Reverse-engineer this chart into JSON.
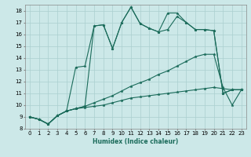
{
  "xlabel": "Humidex (Indice chaleur)",
  "xlim": [
    -0.5,
    23.5
  ],
  "ylim": [
    8,
    18.5
  ],
  "xticks": [
    0,
    1,
    2,
    3,
    4,
    5,
    6,
    7,
    8,
    9,
    10,
    11,
    12,
    13,
    14,
    15,
    16,
    17,
    18,
    19,
    20,
    21,
    22,
    23
  ],
  "yticks": [
    8,
    9,
    10,
    11,
    12,
    13,
    14,
    15,
    16,
    17,
    18
  ],
  "bg_color": "#cce8e8",
  "grid_color": "#aacfcf",
  "line_color": "#1a6b5a",
  "lines": [
    {
      "x": [
        0,
        1,
        2,
        3,
        4,
        5,
        6,
        7,
        8,
        9,
        10,
        11,
        12,
        13,
        14,
        15,
        16,
        17,
        18,
        19,
        20,
        21,
        22,
        23
      ],
      "y": [
        9.0,
        8.8,
        8.4,
        9.1,
        9.5,
        9.7,
        9.8,
        9.9,
        10.0,
        10.2,
        10.4,
        10.6,
        10.7,
        10.8,
        10.9,
        11.0,
        11.1,
        11.2,
        11.3,
        11.4,
        11.5,
        11.4,
        11.3,
        11.3
      ]
    },
    {
      "x": [
        0,
        1,
        2,
        3,
        4,
        5,
        6,
        7,
        8,
        9,
        10,
        11,
        12,
        13,
        14,
        15,
        16,
        17,
        18,
        19,
        20,
        21,
        22,
        23
      ],
      "y": [
        9.0,
        8.8,
        8.4,
        9.1,
        9.5,
        9.7,
        9.9,
        10.2,
        10.5,
        10.8,
        11.2,
        11.6,
        11.9,
        12.2,
        12.6,
        12.9,
        13.3,
        13.7,
        14.1,
        14.3,
        14.3,
        11.5,
        10.0,
        11.3
      ]
    },
    {
      "x": [
        0,
        1,
        2,
        3,
        4,
        5,
        6,
        7,
        8,
        9,
        10,
        11,
        12,
        13,
        14,
        15,
        16,
        17,
        18,
        19,
        20,
        21,
        22,
        23
      ],
      "y": [
        9.0,
        8.8,
        8.4,
        9.1,
        9.5,
        13.2,
        13.3,
        16.7,
        16.8,
        14.8,
        17.0,
        18.3,
        16.9,
        16.5,
        16.2,
        16.4,
        17.5,
        17.0,
        16.4,
        16.4,
        16.3,
        11.0,
        11.3,
        11.3
      ]
    },
    {
      "x": [
        0,
        1,
        2,
        3,
        4,
        5,
        6,
        7,
        8,
        9,
        10,
        11,
        12,
        13,
        14,
        15,
        16,
        17,
        18,
        19,
        20,
        21,
        22,
        23
      ],
      "y": [
        9.0,
        8.8,
        8.4,
        9.1,
        9.5,
        9.7,
        9.9,
        16.7,
        16.8,
        14.8,
        17.0,
        18.3,
        16.9,
        16.5,
        16.2,
        17.8,
        17.8,
        17.0,
        16.4,
        16.4,
        16.3,
        11.0,
        11.3,
        11.3
      ]
    }
  ]
}
